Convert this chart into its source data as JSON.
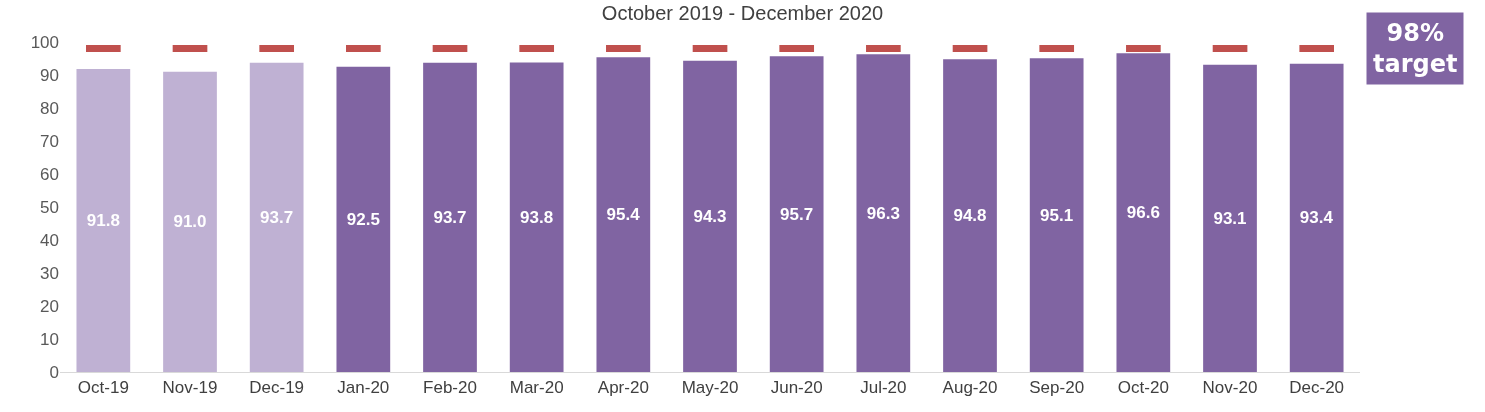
{
  "chart_data": {
    "type": "bar",
    "title": "October 2019 - December 2020",
    "categories": [
      "Oct-19",
      "Nov-19",
      "Dec-19",
      "Jan-20",
      "Feb-20",
      "Mar-20",
      "Apr-20",
      "May-20",
      "Jun-20",
      "Jul-20",
      "Aug-20",
      "Sep-20",
      "Oct-20",
      "Nov-20",
      "Dec-20"
    ],
    "values": [
      91.8,
      91.0,
      93.7,
      92.5,
      93.7,
      93.8,
      95.4,
      94.3,
      95.7,
      96.3,
      94.8,
      95.1,
      96.6,
      93.1,
      93.4
    ],
    "value_labels": [
      "91.8",
      "91.0",
      "93.7",
      "92.5",
      "93.7",
      "93.8",
      "95.4",
      "94.3",
      "95.7",
      "96.3",
      "94.8",
      "95.1",
      "96.6",
      "93.1",
      "93.4"
    ],
    "colors": [
      "#bfb1d3",
      "#bfb1d3",
      "#bfb1d3",
      "#8064a2",
      "#8064a2",
      "#8064a2",
      "#8064a2",
      "#8064a2",
      "#8064a2",
      "#8064a2",
      "#8064a2",
      "#8064a2",
      "#8064a2",
      "#8064a2",
      "#8064a2"
    ],
    "ylim": [
      0,
      100
    ],
    "yticks": [
      0,
      10,
      20,
      30,
      40,
      50,
      60,
      70,
      80,
      90,
      100
    ],
    "grid": false,
    "ref_lines": [
      {
        "axis": "y",
        "value": 98,
        "label": "98%\ntarget",
        "color": "#c0504d",
        "line_style": "dashed"
      }
    ]
  }
}
